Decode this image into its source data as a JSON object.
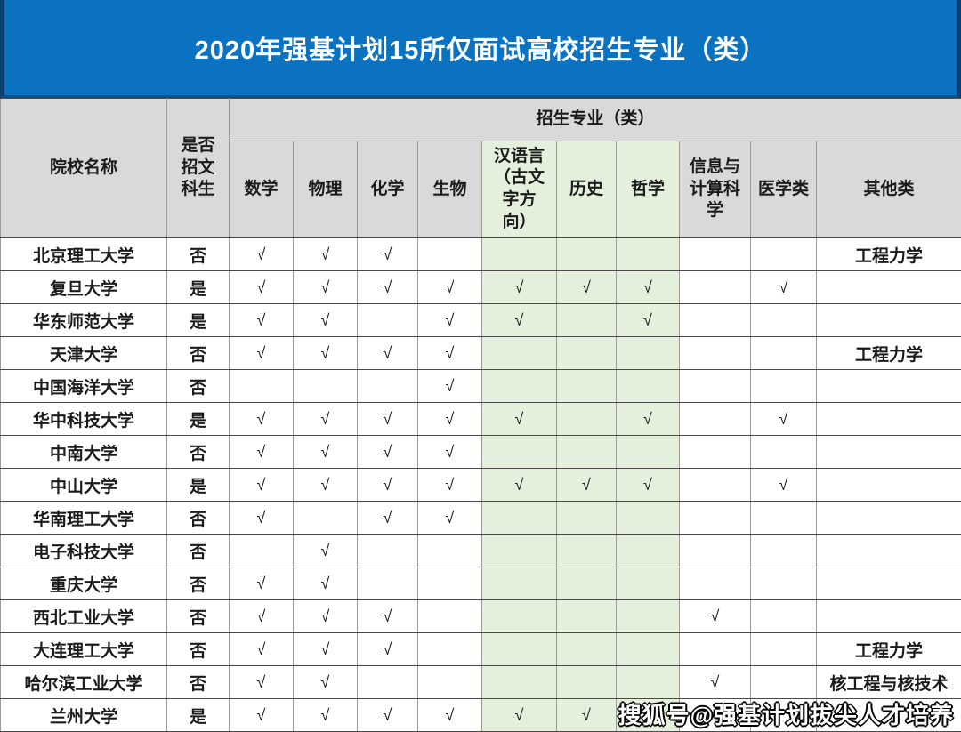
{
  "banner": {
    "title": "2020年强基计划15所仅面试高校招生专业（类）"
  },
  "colors": {
    "banner_bg": "#0b72c2",
    "banner_edge": "#0c3f70",
    "header_bg": "#d9d9d9",
    "highlight_green": "#e4efdc",
    "grid_line": "#4a4a4a"
  },
  "table": {
    "university_header": "院校名称",
    "liberal_arts_header": "是否\n招文\n科生",
    "group_header": "招生专业（类）",
    "check_glyph": "√",
    "subject_headers": [
      "数学",
      "物理",
      "化学",
      "生物",
      "汉语言\n（古文\n字方\n向）",
      "历史",
      "哲学",
      "信息与\n计算科\n学",
      "医学类",
      "其他类"
    ],
    "rows": [
      {
        "name": "北京理工大学",
        "liberal": "否",
        "majors": [
          "√",
          "√",
          "√",
          "",
          "",
          "",
          "",
          "",
          "",
          "工程力学"
        ]
      },
      {
        "name": "复旦大学",
        "liberal": "是",
        "majors": [
          "√",
          "√",
          "√",
          "√",
          "√",
          "√",
          "√",
          "",
          "√",
          ""
        ]
      },
      {
        "name": "华东师范大学",
        "liberal": "是",
        "majors": [
          "√",
          "√",
          "",
          "√",
          "√",
          "",
          "√",
          "",
          "",
          ""
        ]
      },
      {
        "name": "天津大学",
        "liberal": "否",
        "majors": [
          "√",
          "√",
          "√",
          "√",
          "",
          "",
          "",
          "",
          "",
          "工程力学"
        ]
      },
      {
        "name": "中国海洋大学",
        "liberal": "否",
        "majors": [
          "",
          "",
          "",
          "√",
          "",
          "",
          "",
          "",
          "",
          ""
        ]
      },
      {
        "name": "华中科技大学",
        "liberal": "是",
        "majors": [
          "√",
          "√",
          "√",
          "√",
          "√",
          "",
          "√",
          "",
          "√",
          ""
        ]
      },
      {
        "name": "中南大学",
        "liberal": "否",
        "majors": [
          "√",
          "√",
          "√",
          "√",
          "",
          "",
          "",
          "",
          "",
          ""
        ]
      },
      {
        "name": "中山大学",
        "liberal": "是",
        "majors": [
          "√",
          "√",
          "√",
          "√",
          "√",
          "√",
          "√",
          "",
          "√",
          ""
        ]
      },
      {
        "name": "华南理工大学",
        "liberal": "否",
        "majors": [
          "√",
          "",
          "√",
          "√",
          "",
          "",
          "",
          "",
          "",
          ""
        ]
      },
      {
        "name": "电子科技大学",
        "liberal": "否",
        "majors": [
          "",
          "√",
          "",
          "",
          "",
          "",
          "",
          "",
          "",
          ""
        ]
      },
      {
        "name": "重庆大学",
        "liberal": "否",
        "majors": [
          "√",
          "√",
          "",
          "",
          "",
          "",
          "",
          "",
          "",
          ""
        ]
      },
      {
        "name": "西北工业大学",
        "liberal": "否",
        "majors": [
          "√",
          "√",
          "√",
          "",
          "",
          "",
          "",
          "√",
          "",
          ""
        ]
      },
      {
        "name": "大连理工大学",
        "liberal": "否",
        "majors": [
          "√",
          "√",
          "√",
          "",
          "",
          "",
          "",
          "",
          "",
          "工程力学"
        ]
      },
      {
        "name": "哈尔滨工业大学",
        "liberal": "否",
        "majors": [
          "√",
          "√",
          "",
          "",
          "",
          "",
          "",
          "√",
          "",
          "核工程与核技术"
        ]
      },
      {
        "name": "兰州大学",
        "liberal": "是",
        "majors": [
          "√",
          "√",
          "√",
          "√",
          "√",
          "√",
          "",
          "",
          "",
          ""
        ]
      }
    ]
  },
  "watermark": {
    "text": "搜狐号@强基计划拔尖人才培养"
  }
}
